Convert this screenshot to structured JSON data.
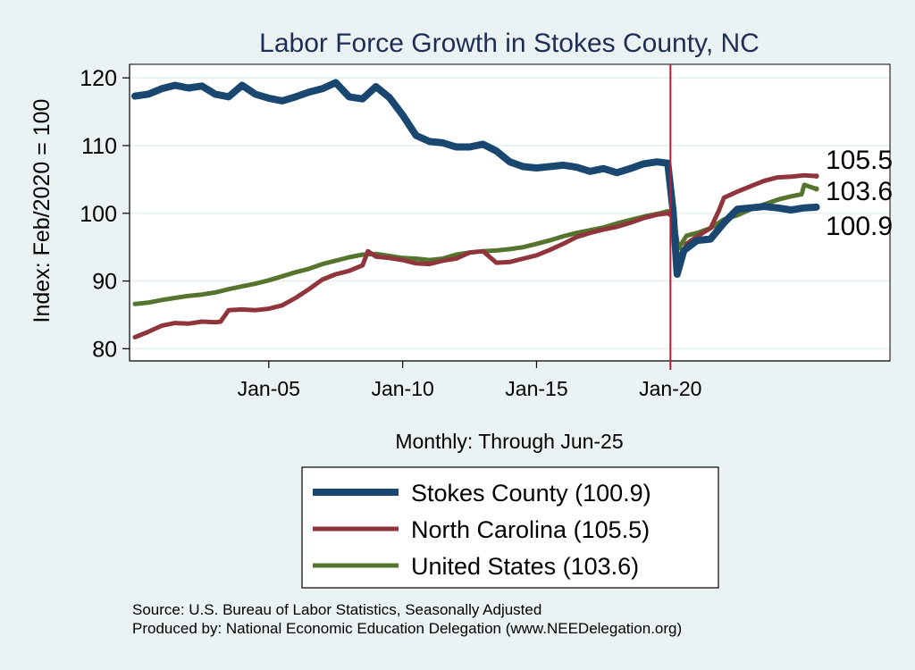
{
  "chart_data": {
    "type": "line",
    "title": "Labor Force Growth in Stokes  County, NC",
    "xlabel": "Monthly: Through Jun-25",
    "ylabel": "Index: Feb/2020 = 100",
    "xlim": [
      1999.8,
      2028.2
    ],
    "ylim": [
      78.2,
      122
    ],
    "x_ticks": [
      2005,
      2010,
      2015,
      2020
    ],
    "x_tick_labels": [
      "Jan-05",
      "Jan-10",
      "Jan-15",
      "Jan-20"
    ],
    "y_ticks": [
      80,
      90,
      100,
      110,
      120
    ],
    "y_tick_labels": [
      "80",
      "90",
      "100",
      "110",
      "120"
    ],
    "grid": true,
    "vline": {
      "x": 2020.0,
      "color": "#b5203a"
    },
    "legend_position": "bottom-center",
    "series": [
      {
        "name": "Stokes  County (100.9)",
        "color": "#1a476f",
        "final_label": "100.9",
        "points": [
          [
            2000.0,
            117.3
          ],
          [
            2000.5,
            117.6
          ],
          [
            2001.0,
            118.4
          ],
          [
            2001.5,
            118.9
          ],
          [
            2002.0,
            118.5
          ],
          [
            2002.5,
            118.8
          ],
          [
            2003.0,
            117.6
          ],
          [
            2003.5,
            117.2
          ],
          [
            2004.0,
            118.9
          ],
          [
            2004.5,
            117.6
          ],
          [
            2005.0,
            117.0
          ],
          [
            2005.5,
            116.6
          ],
          [
            2006.0,
            117.2
          ],
          [
            2006.5,
            117.9
          ],
          [
            2007.0,
            118.4
          ],
          [
            2007.5,
            119.3
          ],
          [
            2008.0,
            117.2
          ],
          [
            2008.5,
            116.9
          ],
          [
            2009.0,
            118.7
          ],
          [
            2009.5,
            117.1
          ],
          [
            2010.0,
            114.5
          ],
          [
            2010.5,
            111.5
          ],
          [
            2011.0,
            110.6
          ],
          [
            2011.5,
            110.4
          ],
          [
            2012.0,
            109.8
          ],
          [
            2012.5,
            109.8
          ],
          [
            2013.0,
            110.2
          ],
          [
            2013.5,
            109.2
          ],
          [
            2014.0,
            107.6
          ],
          [
            2014.5,
            106.9
          ],
          [
            2015.0,
            106.7
          ],
          [
            2015.5,
            106.9
          ],
          [
            2016.0,
            107.1
          ],
          [
            2016.5,
            106.8
          ],
          [
            2017.0,
            106.2
          ],
          [
            2017.5,
            106.6
          ],
          [
            2018.0,
            106.0
          ],
          [
            2018.5,
            106.6
          ],
          [
            2019.0,
            107.3
          ],
          [
            2019.5,
            107.6
          ],
          [
            2019.9,
            107.4
          ],
          [
            2020.1,
            100.3
          ],
          [
            2020.25,
            91.0
          ],
          [
            2020.5,
            94.5
          ],
          [
            2021.0,
            96.0
          ],
          [
            2021.5,
            96.2
          ],
          [
            2022.0,
            98.6
          ],
          [
            2022.5,
            100.6
          ],
          [
            2023.0,
            100.8
          ],
          [
            2023.5,
            101.0
          ],
          [
            2024.0,
            100.8
          ],
          [
            2024.5,
            100.5
          ],
          [
            2025.0,
            100.8
          ],
          [
            2025.45,
            100.9
          ]
        ]
      },
      {
        "name": "North Carolina (105.5)",
        "color": "#90353b",
        "final_label": "105.5",
        "points": [
          [
            2000.0,
            81.7
          ],
          [
            2000.5,
            82.5
          ],
          [
            2001.0,
            83.4
          ],
          [
            2001.5,
            83.8
          ],
          [
            2002.0,
            83.7
          ],
          [
            2002.5,
            84.0
          ],
          [
            2003.0,
            83.9
          ],
          [
            2003.2,
            84.0
          ],
          [
            2003.5,
            85.7
          ],
          [
            2004.0,
            85.8
          ],
          [
            2004.5,
            85.7
          ],
          [
            2005.0,
            85.9
          ],
          [
            2005.5,
            86.4
          ],
          [
            2006.0,
            87.5
          ],
          [
            2006.5,
            88.8
          ],
          [
            2007.0,
            90.2
          ],
          [
            2007.5,
            91.0
          ],
          [
            2008.0,
            91.5
          ],
          [
            2008.5,
            92.3
          ],
          [
            2008.7,
            94.4
          ],
          [
            2009.0,
            93.6
          ],
          [
            2009.5,
            93.4
          ],
          [
            2010.0,
            93.1
          ],
          [
            2010.5,
            92.6
          ],
          [
            2011.0,
            92.5
          ],
          [
            2011.5,
            93.0
          ],
          [
            2012.0,
            93.3
          ],
          [
            2012.5,
            94.2
          ],
          [
            2013.0,
            94.4
          ],
          [
            2013.5,
            92.7
          ],
          [
            2014.0,
            92.8
          ],
          [
            2014.5,
            93.3
          ],
          [
            2015.0,
            93.8
          ],
          [
            2015.5,
            94.6
          ],
          [
            2016.0,
            95.5
          ],
          [
            2016.5,
            96.5
          ],
          [
            2017.0,
            97.1
          ],
          [
            2017.5,
            97.6
          ],
          [
            2018.0,
            98.0
          ],
          [
            2018.5,
            98.6
          ],
          [
            2019.0,
            99.3
          ],
          [
            2019.5,
            99.8
          ],
          [
            2019.9,
            100.0
          ],
          [
            2020.1,
            99.5
          ],
          [
            2020.3,
            92.4
          ],
          [
            2020.6,
            95.5
          ],
          [
            2021.0,
            96.6
          ],
          [
            2021.5,
            97.8
          ],
          [
            2021.8,
            100.3
          ],
          [
            2022.0,
            102.3
          ],
          [
            2022.5,
            103.2
          ],
          [
            2023.0,
            104.0
          ],
          [
            2023.5,
            104.8
          ],
          [
            2024.0,
            105.3
          ],
          [
            2024.5,
            105.4
          ],
          [
            2025.0,
            105.6
          ],
          [
            2025.45,
            105.5
          ]
        ]
      },
      {
        "name": "United States (103.6)",
        "color": "#55752f",
        "final_label": "103.6",
        "points": [
          [
            2000.0,
            86.6
          ],
          [
            2000.5,
            86.8
          ],
          [
            2001.0,
            87.2
          ],
          [
            2001.5,
            87.5
          ],
          [
            2002.0,
            87.8
          ],
          [
            2002.5,
            88.0
          ],
          [
            2003.0,
            88.3
          ],
          [
            2003.5,
            88.8
          ],
          [
            2004.0,
            89.2
          ],
          [
            2004.5,
            89.6
          ],
          [
            2005.0,
            90.1
          ],
          [
            2005.5,
            90.7
          ],
          [
            2006.0,
            91.3
          ],
          [
            2006.5,
            91.8
          ],
          [
            2007.0,
            92.5
          ],
          [
            2007.5,
            93.0
          ],
          [
            2008.0,
            93.5
          ],
          [
            2008.5,
            93.9
          ],
          [
            2009.0,
            94.0
          ],
          [
            2009.5,
            93.7
          ],
          [
            2010.0,
            93.4
          ],
          [
            2010.5,
            93.3
          ],
          [
            2011.0,
            93.1
          ],
          [
            2011.5,
            93.3
          ],
          [
            2012.0,
            93.9
          ],
          [
            2012.5,
            94.2
          ],
          [
            2013.0,
            94.4
          ],
          [
            2013.5,
            94.5
          ],
          [
            2014.0,
            94.7
          ],
          [
            2014.5,
            95.0
          ],
          [
            2015.0,
            95.5
          ],
          [
            2015.5,
            96.0
          ],
          [
            2016.0,
            96.6
          ],
          [
            2016.5,
            97.1
          ],
          [
            2017.0,
            97.5
          ],
          [
            2017.5,
            97.9
          ],
          [
            2018.0,
            98.5
          ],
          [
            2018.5,
            99.0
          ],
          [
            2019.0,
            99.5
          ],
          [
            2019.5,
            99.9
          ],
          [
            2019.9,
            100.3
          ],
          [
            2020.1,
            99.6
          ],
          [
            2020.3,
            94.8
          ],
          [
            2020.6,
            96.7
          ],
          [
            2021.0,
            97.1
          ],
          [
            2021.5,
            97.8
          ],
          [
            2022.0,
            99.1
          ],
          [
            2022.5,
            99.7
          ],
          [
            2023.0,
            100.6
          ],
          [
            2023.5,
            101.3
          ],
          [
            2024.0,
            102.0
          ],
          [
            2024.5,
            102.5
          ],
          [
            2024.9,
            102.8
          ],
          [
            2025.0,
            104.2
          ],
          [
            2025.45,
            103.6
          ]
        ]
      }
    ]
  },
  "source_line": "Source: U.S. Bureau of Labor Statistics, Seasonally Adjusted",
  "produced_line": "Produced by: National Economic Education Delegation (www.NEEDelegation.org)"
}
